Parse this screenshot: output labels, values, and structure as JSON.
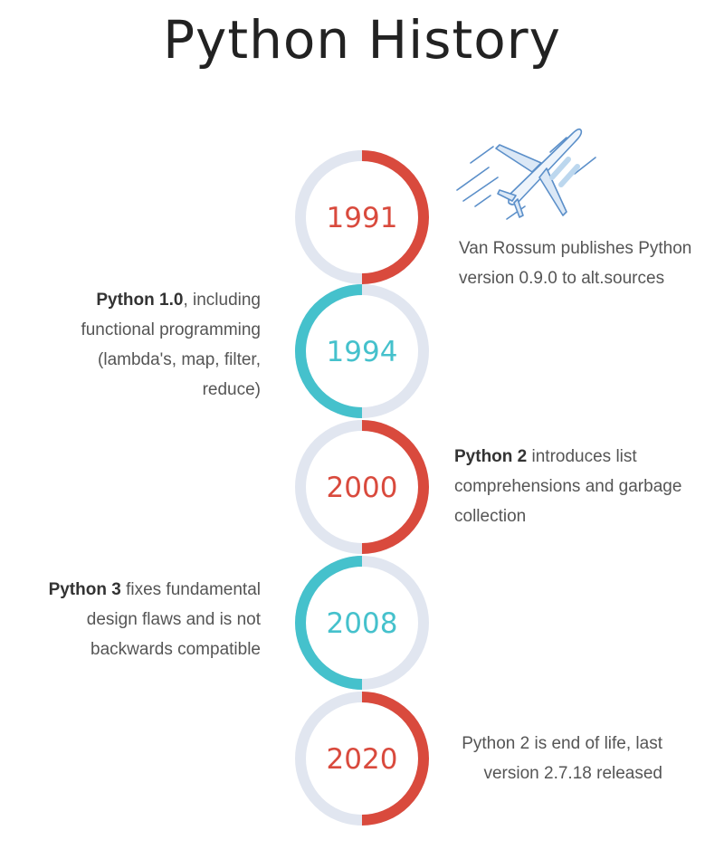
{
  "title": "Python History",
  "colors": {
    "red": "#d94a3d",
    "teal": "#45c1cc",
    "ring": "#e1e6f0",
    "text": "#555555"
  },
  "icons": [
    "airplane-icon"
  ],
  "milestones": [
    {
      "year": "1991",
      "color": "red",
      "side": "right",
      "bold": "",
      "text": "Van Rossum publishes Python version 0.9.0 to alt.sources"
    },
    {
      "year": "1994",
      "color": "teal",
      "side": "left",
      "bold": "Python 1.0",
      "text": ", including functional programming (lambda's, map, filter, reduce)"
    },
    {
      "year": "2000",
      "color": "red",
      "side": "right",
      "bold": "Python 2",
      "text": " introduces list comprehensions and garbage collection"
    },
    {
      "year": "2008",
      "color": "teal",
      "side": "left",
      "bold": "Python 3",
      "text": " fixes fundamental design flaws and is not backwards compatible"
    },
    {
      "year": "2020",
      "color": "red",
      "side": "right",
      "bold": "",
      "text": "Python 2 is end of life, last version 2.7.18 released"
    }
  ]
}
